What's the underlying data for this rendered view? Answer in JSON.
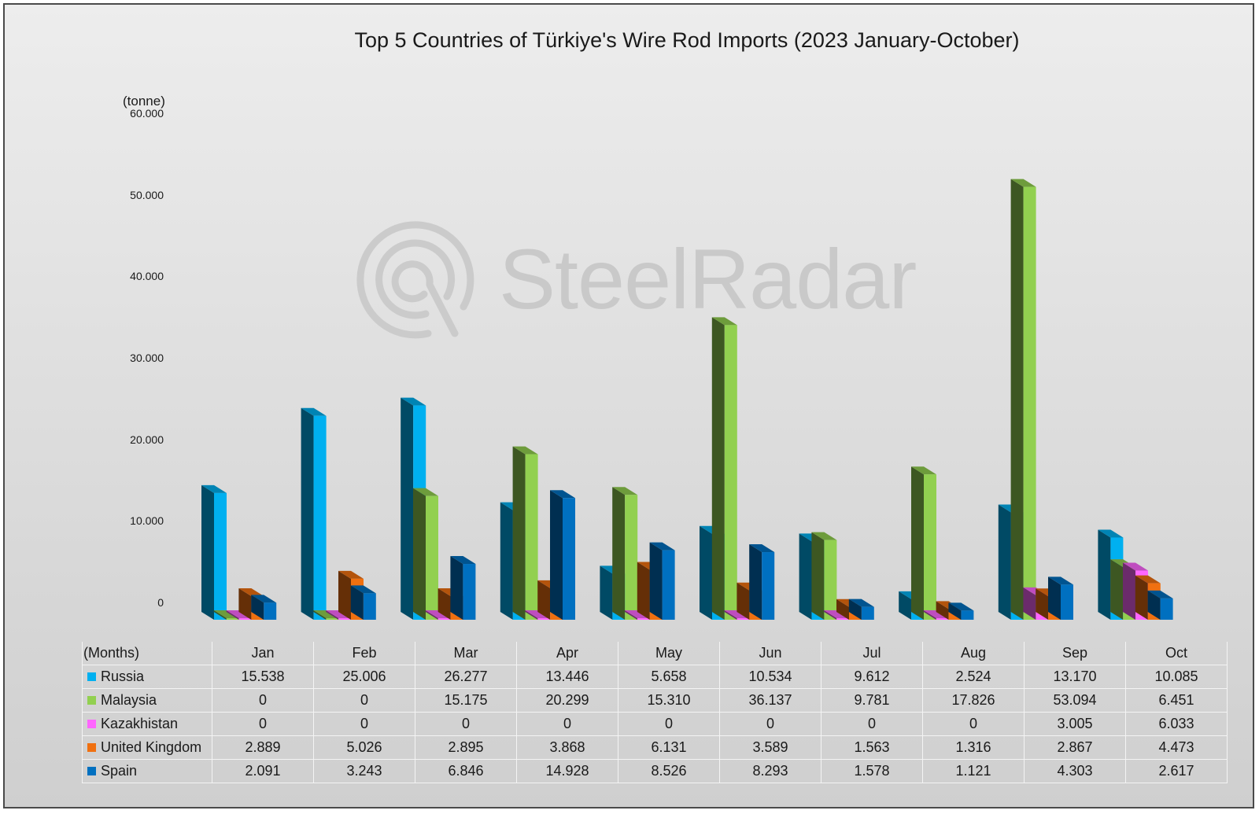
{
  "chart_data": {
    "type": "bar",
    "title": "Top 5 Countries of Türkiye's Wire Rod Imports (2023 January-October)",
    "ylabel": "(tonne)",
    "xlabel": "(Months)",
    "ylim": [
      0,
      60000
    ],
    "ytick_labels": [
      "0",
      "10.000",
      "20.000",
      "30.000",
      "40.000",
      "50.000",
      "60.000"
    ],
    "categories": [
      "Jan",
      "Feb",
      "Mar",
      "Apr",
      "May",
      "Jun",
      "Jul",
      "Aug",
      "Sep",
      "Oct"
    ],
    "series": [
      {
        "name": "Russia",
        "color": "#00b0f0",
        "values": [
          15538,
          25006,
          26277,
          13446,
          5658,
          10534,
          9612,
          2524,
          13170,
          10085
        ],
        "labels": [
          "15.538",
          "25.006",
          "26.277",
          "13.446",
          "5.658",
          "10.534",
          "9.612",
          "2.524",
          "13.170",
          "10.085"
        ]
      },
      {
        "name": "Malaysia",
        "color": "#92d050",
        "values": [
          0,
          0,
          15175,
          20299,
          15310,
          36137,
          9781,
          17826,
          53094,
          6451
        ],
        "labels": [
          "0",
          "0",
          "15.175",
          "20.299",
          "15.310",
          "36.137",
          "9.781",
          "17.826",
          "53.094",
          "6.451"
        ]
      },
      {
        "name": "Kazakhistan",
        "color": "#ff66ff",
        "values": [
          0,
          0,
          0,
          0,
          0,
          0,
          0,
          0,
          3005,
          6033
        ],
        "labels": [
          "0",
          "0",
          "0",
          "0",
          "0",
          "0",
          "0",
          "0",
          "3.005",
          "6.033"
        ]
      },
      {
        "name": "United Kingdom",
        "color": "#f07010",
        "values": [
          2889,
          5026,
          2895,
          3868,
          6131,
          3589,
          1563,
          1316,
          2867,
          4473
        ],
        "labels": [
          "2.889",
          "5.026",
          "2.895",
          "3.868",
          "6.131",
          "3.589",
          "1.563",
          "1.316",
          "2.867",
          "4.473"
        ]
      },
      {
        "name": "Spain",
        "color": "#0070c0",
        "values": [
          2091,
          3243,
          6846,
          14928,
          8526,
          8293,
          1578,
          1121,
          4303,
          2617
        ],
        "labels": [
          "2.091",
          "3.243",
          "6.846",
          "14.928",
          "8.526",
          "8.293",
          "1.578",
          "1.121",
          "4.303",
          "2.617"
        ]
      }
    ]
  },
  "watermark": {
    "text": "SteelRadar",
    "color": "#c9c9c9"
  }
}
